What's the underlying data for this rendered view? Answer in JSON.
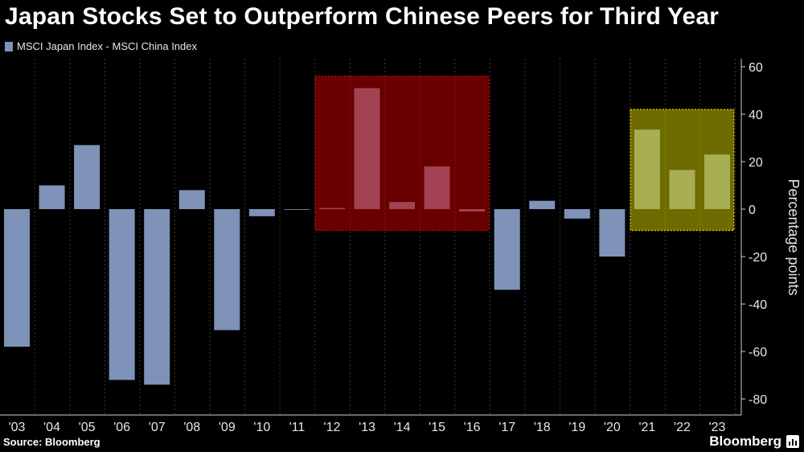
{
  "header": {
    "title": "Japan Stocks Set to Outperform Chinese Peers for Third Year",
    "legend_label": "MSCI Japan Index - MSCI China Index"
  },
  "footer": {
    "source": "Source: Bloomberg",
    "brand": "Bloomberg"
  },
  "colors": {
    "background": "#000000",
    "bar": "#7f93b8",
    "grid": "#3a3a3a",
    "highlight_red": "#c00000",
    "highlight_yellow": "#c9c400"
  },
  "chart_data": {
    "type": "bar",
    "title": "Japan Stocks Set to Outperform Chinese Peers for Third Year",
    "ylabel": "Percentage points",
    "ylim": [
      -87,
      60
    ],
    "yticks": [
      60,
      40,
      20,
      0,
      -20,
      -40,
      -60,
      -80
    ],
    "grid": "vertical",
    "legend_position": "top-left",
    "categories": [
      "'03",
      "'04",
      "'05",
      "'06",
      "'07",
      "'08",
      "'09",
      "'10",
      "'11",
      "'12",
      "'13",
      "'14",
      "'15",
      "'16",
      "'17",
      "'18",
      "'19",
      "'20",
      "'21",
      "'22",
      "'23"
    ],
    "series": [
      {
        "name": "MSCI Japan Index - MSCI China Index",
        "values": [
          -58,
          10,
          27,
          -72,
          -74,
          8,
          -51,
          -3,
          0,
          0.5,
          51,
          3,
          18,
          -1,
          -34,
          3.5,
          -4,
          -20,
          33.5,
          16.5,
          23
        ]
      }
    ],
    "highlights": [
      {
        "from_category": "'12",
        "to_category": "'16",
        "y_range": [
          -9,
          56
        ],
        "color": "#c00000"
      },
      {
        "from_category": "'21",
        "to_category": "'23",
        "y_range": [
          -9,
          42
        ],
        "color": "#c9c400"
      }
    ]
  }
}
